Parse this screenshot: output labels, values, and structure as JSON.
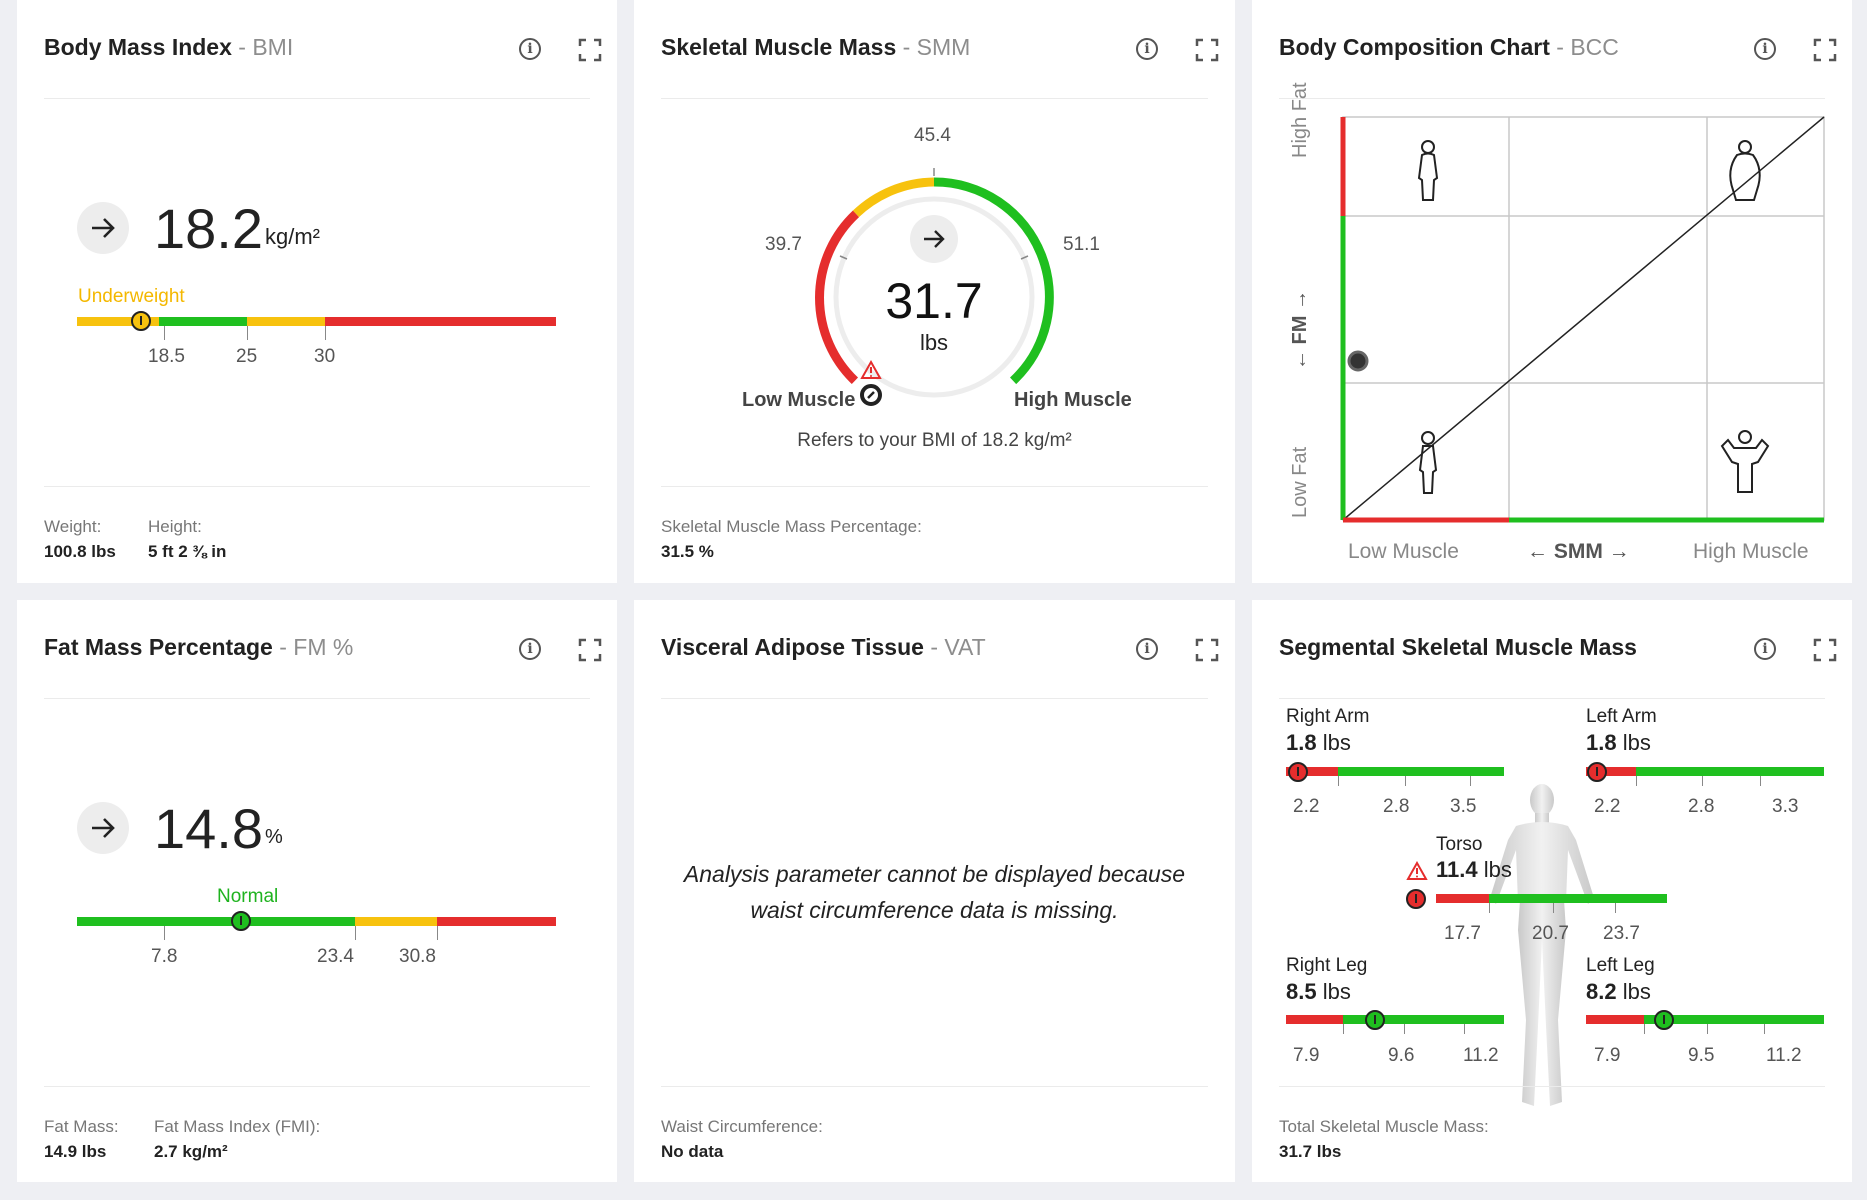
{
  "colors": {
    "red": "#e52d2d",
    "green": "#1fbf1f",
    "yellow": "#f7c20e",
    "dark": "#222222"
  },
  "bmi": {
    "title": "Body Mass Index",
    "abbr": "- BMI",
    "value": "18.2",
    "unit": "kg/m²",
    "status": "Underweight",
    "ticks": [
      "18.5",
      "25",
      "30"
    ],
    "weight_label": "Weight:",
    "weight_value": "100.8 lbs",
    "height_label": "Height:",
    "height_value": "5 ft 2 ⅜ in"
  },
  "smm": {
    "title": "Skeletal Muscle Mass",
    "abbr": "- SMM",
    "value": "31.7",
    "unit": "lbs",
    "ticks": [
      "39.7",
      "45.4",
      "51.1"
    ],
    "low_label": "Low Muscle",
    "high_label": "High Muscle",
    "note": "Refers to your BMI of 18.2 kg/m²",
    "pct_label": "Skeletal Muscle Mass Percentage:",
    "pct_value": "31.5 %"
  },
  "bcc": {
    "title": "Body Composition Chart",
    "abbr": "- BCC",
    "y_high": "High Fat",
    "y_axis": "← FM →",
    "y_low": "Low Fat",
    "x_low": "Low Muscle",
    "x_axis": "← SMM →",
    "x_high": "High Muscle"
  },
  "fm": {
    "title": "Fat Mass Percentage",
    "abbr": "- FM %",
    "value": "14.8",
    "unit": "%",
    "status": "Normal",
    "ticks": [
      "7.8",
      "23.4",
      "30.8"
    ],
    "mass_label": "Fat Mass:",
    "mass_value": "14.9 lbs",
    "fmi_label": "Fat Mass Index (FMI):",
    "fmi_value": "2.7 kg/m²"
  },
  "vat": {
    "title": "Visceral Adipose Tissue",
    "abbr": "- VAT",
    "message_line1": "Analysis parameter cannot be displayed because",
    "message_line2": "waist circumference data is missing.",
    "waist_label": "Waist Circumference:",
    "waist_value": "No data"
  },
  "ssmm": {
    "title": "Segmental Skeletal Muscle Mass",
    "right_arm": {
      "label": "Right Arm",
      "value": "1.8",
      "unit": "lbs",
      "ticks": [
        "2.2",
        "2.8",
        "3.5"
      ]
    },
    "left_arm": {
      "label": "Left Arm",
      "value": "1.8",
      "unit": "lbs",
      "ticks": [
        "2.2",
        "2.8",
        "3.3"
      ]
    },
    "torso": {
      "label": "Torso",
      "value": "11.4",
      "unit": "lbs",
      "ticks": [
        "17.7",
        "20.7",
        "23.7"
      ]
    },
    "right_leg": {
      "label": "Right Leg",
      "value": "8.5",
      "unit": "lbs",
      "ticks": [
        "7.9",
        "9.6",
        "11.2"
      ]
    },
    "left_leg": {
      "label": "Left Leg",
      "value": "8.2",
      "unit": "lbs",
      "ticks": [
        "7.9",
        "9.5",
        "11.2"
      ]
    },
    "total_label": "Total Skeletal Muscle Mass:",
    "total_value": "31.7 lbs"
  }
}
